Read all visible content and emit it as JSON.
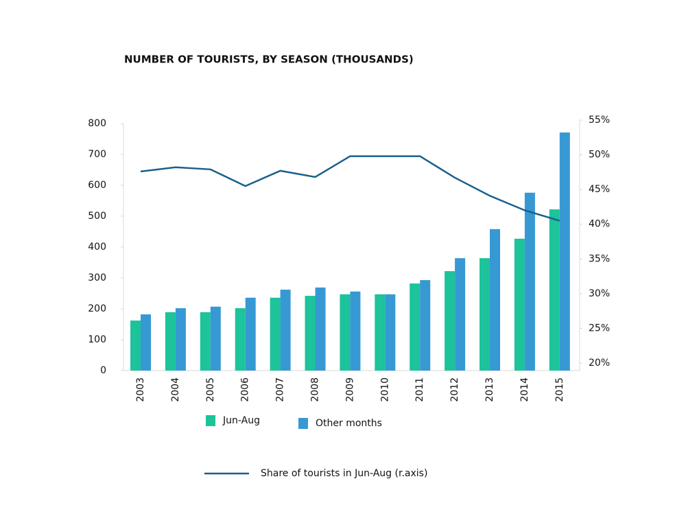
{
  "chart_data": {
    "type": "bar_line",
    "title": "NUMBER OF TOURISTS, BY SEASON (THOUSANDS)",
    "categories": [
      "2003",
      "2004",
      "2005",
      "2006",
      "2007",
      "2008",
      "2009",
      "2010",
      "2011",
      "2012",
      "2013",
      "2014",
      "2015"
    ],
    "series": [
      {
        "name": "Jun-Aug",
        "color": "#1cc39b",
        "type": "bar",
        "values": [
          162,
          189,
          189,
          202,
          236,
          242,
          247,
          247,
          282,
          322,
          364,
          427,
          522
        ]
      },
      {
        "name": "Other months",
        "color": "#3799d3",
        "type": "bar",
        "values": [
          182,
          202,
          207,
          236,
          262,
          269,
          256,
          247,
          293,
          364,
          458,
          576,
          771
        ]
      },
      {
        "name": "Share of tourists in Jun-Aug (r.axis)",
        "color": "#1a5f8c",
        "type": "line",
        "axis": "y2",
        "values": [
          47.6,
          48.2,
          47.9,
          45.5,
          47.7,
          46.8,
          49.8,
          49.8,
          49.8,
          46.7,
          44.1,
          42.0,
          40.5
        ]
      }
    ],
    "ylim": [
      0,
      800
    ],
    "yticks": [
      0,
      100,
      200,
      300,
      400,
      500,
      600,
      700,
      800
    ],
    "y2lim": [
      20,
      55
    ],
    "y2ticks": [
      {
        "value": 20,
        "label": "20%"
      },
      {
        "value": 25,
        "label": "25%"
      },
      {
        "value": 30,
        "label": "30%"
      },
      {
        "value": 35,
        "label": "35%"
      },
      {
        "value": 40,
        "label": "40%"
      },
      {
        "value": 45,
        "label": "45%"
      },
      {
        "value": 50,
        "label": "50%"
      },
      {
        "value": 55,
        "label": "55%"
      }
    ]
  }
}
